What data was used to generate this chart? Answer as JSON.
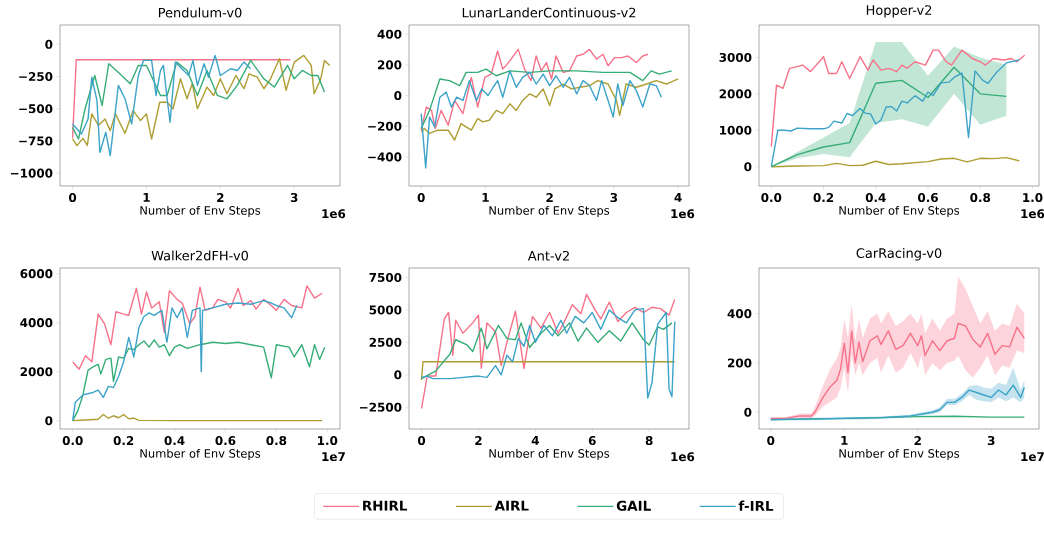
{
  "chart_data": [
    {
      "type": "line",
      "title": "Pendulum-v0",
      "xlabel": "Number of Env Steps",
      "annotations": [
        "1e6"
      ],
      "xlim": [
        -0.17,
        3.62
      ],
      "ylim": [
        -1100,
        150
      ],
      "xticks": [
        0,
        1,
        2,
        3
      ],
      "yticks": [
        {
          "value": -1000,
          "label": "−1000"
        },
        {
          "value": -750,
          "label": "−750"
        },
        {
          "value": -500,
          "label": "−500"
        },
        {
          "value": -250,
          "label": "−250"
        },
        0
      ],
      "series": [
        {
          "color": "#f77189",
          "x": [
            0,
            0.05,
            2.95
          ],
          "values": [
            -730,
            -120,
            -120
          ]
        },
        {
          "color": "#ae9d31",
          "x": [
            0,
            0.06,
            0.14,
            0.2,
            0.26,
            0.35,
            0.44,
            0.51,
            0.58,
            0.71,
            0.82,
            0.92,
            1.0,
            1.07,
            1.18,
            1.28,
            1.36,
            1.46,
            1.55,
            1.62,
            1.69,
            1.82,
            1.91,
            2.0,
            2.09,
            2.21,
            2.32,
            2.39,
            2.5,
            2.59,
            2.68,
            2.8,
            2.89,
            3.0,
            3.13,
            3.23,
            3.27,
            3.36,
            3.41,
            3.48
          ],
          "values": [
            -735,
            -787,
            -730,
            -785,
            -540,
            -630,
            -580,
            -670,
            -540,
            -690,
            -515,
            -592,
            -540,
            -735,
            -450,
            -450,
            -500,
            -268,
            -423,
            -306,
            -500,
            -332,
            -397,
            -268,
            -384,
            -242,
            -345,
            -229,
            -255,
            -345,
            -268,
            -112,
            -358,
            -138,
            -86,
            -164,
            -384,
            -268,
            -125,
            -164
          ]
        },
        {
          "color": "#36ad77",
          "x": [
            0,
            0.08,
            0.17,
            0.3,
            0.4,
            0.49,
            0.64,
            0.78,
            0.89,
            1.0,
            1.19,
            1.28,
            1.41,
            1.55,
            1.69,
            1.82,
            1.96,
            2.09,
            2.23,
            2.41,
            2.59,
            2.73,
            2.91,
            3.0,
            3.11,
            3.23,
            3.32,
            3.41
          ],
          "values": [
            -645,
            -735,
            -500,
            -242,
            -475,
            -151,
            -229,
            -306,
            -164,
            -164,
            -397,
            -397,
            -138,
            -203,
            -397,
            -203,
            -397,
            -423,
            -319,
            -125,
            -268,
            -332,
            -164,
            -268,
            -203,
            -242,
            -242,
            -371
          ]
        },
        {
          "color": "#3ba3c8",
          "x": [
            0,
            0.12,
            0.21,
            0.26,
            0.33,
            0.37,
            0.45,
            0.51,
            0.62,
            0.71,
            0.8,
            0.89,
            0.96,
            1.07,
            1.13,
            1.19,
            1.23,
            1.28,
            1.32,
            1.39,
            1.48,
            1.57,
            1.63,
            1.69,
            1.78,
            1.84,
            1.93,
            2.0,
            2.14,
            2.23,
            2.32,
            2.41
          ],
          "values": [
            -618,
            -696,
            -580,
            -255,
            -436,
            -839,
            -683,
            -865,
            -319,
            -423,
            -618,
            -242,
            -125,
            -125,
            -397,
            -203,
            -164,
            -423,
            -605,
            -138,
            -190,
            -242,
            -125,
            -319,
            -151,
            -255,
            -86,
            -242,
            -190,
            -203,
            -138,
            -190
          ]
        }
      ]
    },
    {
      "type": "line",
      "title": "LunarLanderContinuous-v2",
      "xlabel": "Number of Env Steps",
      "annotations": [
        "1e6"
      ],
      "xlim": [
        -0.19,
        4.17
      ],
      "ylim": [
        -590,
        460
      ],
      "xticks": [
        0,
        1,
        2,
        3,
        4
      ],
      "yticks": [
        {
          "value": -400,
          "label": "−400"
        },
        {
          "value": -200,
          "label": "−200"
        },
        0,
        200,
        400
      ],
      "series": [
        {
          "color": "#f77189",
          "x": [
            0,
            0.08,
            0.16,
            0.22,
            0.31,
            0.42,
            0.52,
            0.65,
            0.78,
            0.88,
            0.99,
            1.09,
            1.19,
            1.27,
            1.38,
            1.51,
            1.61,
            1.71,
            1.79,
            1.87,
            1.95,
            2.03,
            2.1,
            2.21,
            2.31,
            2.42,
            2.52,
            2.62,
            2.73,
            2.83,
            2.91,
            3.01,
            3.12,
            3.22,
            3.35,
            3.45,
            3.53
          ],
          "values": [
            -226,
            -75,
            -97,
            -215,
            -97,
            -194,
            -32,
            -118,
            118,
            -75,
            118,
            140,
            290,
            172,
            226,
            301,
            172,
            97,
            258,
            161,
            215,
            108,
            258,
            151,
            161,
            258,
            269,
            301,
            237,
            269,
            194,
            247,
            247,
            258,
            215,
            258,
            269
          ]
        },
        {
          "color": "#ae9d31",
          "x": [
            0,
            0.05,
            0.13,
            0.26,
            0.42,
            0.52,
            0.62,
            0.78,
            0.88,
            0.96,
            1.06,
            1.17,
            1.27,
            1.38,
            1.48,
            1.58,
            1.69,
            1.79,
            1.9,
            2.0,
            2.08,
            2.21,
            2.34,
            2.47,
            2.62,
            2.75,
            2.91,
            3.04,
            3.09,
            3.19,
            3.35,
            3.51,
            3.66,
            3.82,
            4.0
          ],
          "values": [
            -237,
            -215,
            -247,
            -226,
            -226,
            -290,
            -183,
            -226,
            -151,
            -172,
            -161,
            -97,
            -118,
            -54,
            -97,
            -32,
            11,
            -11,
            43,
            -65,
            43,
            75,
            43,
            54,
            65,
            97,
            75,
            -32,
            -129,
            75,
            54,
            75,
            97,
            75,
            108
          ]
        },
        {
          "color": "#36ad77",
          "x": [
            0,
            0.13,
            0.29,
            0.44,
            0.6,
            0.7,
            0.88,
            1.01,
            1.17,
            1.38,
            1.69,
            2.0,
            2.42,
            2.83,
            3.25,
            3.45,
            3.58,
            3.71,
            3.9
          ],
          "values": [
            -215,
            -97,
            108,
            97,
            65,
            151,
            151,
            172,
            129,
            161,
            151,
            161,
            161,
            151,
            151,
            97,
            161,
            140,
            161
          ]
        },
        {
          "color": "#3ba3c8",
          "x": [
            0,
            0.07,
            0.13,
            0.21,
            0.29,
            0.39,
            0.47,
            0.55,
            0.65,
            0.75,
            0.86,
            0.94,
            1.04,
            1.12,
            1.19,
            1.27,
            1.38,
            1.48,
            1.58,
            1.69,
            1.79,
            1.9,
            2.0,
            2.1,
            2.21,
            2.31,
            2.42,
            2.52,
            2.62,
            2.73,
            2.81,
            2.91,
            2.99,
            3.06,
            3.14,
            3.25,
            3.35,
            3.45,
            3.56,
            3.66,
            3.74
          ],
          "values": [
            -118,
            -473,
            -140,
            -204,
            -11,
            22,
            -75,
            -11,
            -32,
            97,
            -32,
            43,
            0,
            54,
            97,
            -11,
            161,
            54,
            118,
            151,
            75,
            140,
            65,
            129,
            54,
            118,
            11,
            97,
            65,
            -32,
            97,
            -32,
            -140,
            75,
            -65,
            97,
            32,
            -75,
            75,
            65,
            -11
          ]
        }
      ]
    },
    {
      "type": "line",
      "title": "Hopper-v2",
      "xlabel": "Number of Env Steps",
      "annotations": [
        "1e6"
      ],
      "xlim": [
        -0.047,
        1.025
      ],
      "ylim": [
        -530,
        3890
      ],
      "xticks": [
        {
          "value": 0,
          "label": "0.0"
        },
        {
          "value": 0.2,
          "label": "0.2"
        },
        {
          "value": 0.4,
          "label": "0.4"
        },
        {
          "value": 0.6,
          "label": "0.6"
        },
        {
          "value": 0.8,
          "label": "0.8"
        },
        {
          "value": 1,
          "label": "1.0"
        }
      ],
      "yticks": [
        0,
        1000,
        2000,
        3000
      ],
      "series": [
        {
          "color": "#f77189",
          "x": [
            0,
            0.02,
            0.045,
            0.07,
            0.095,
            0.12,
            0.15,
            0.2,
            0.22,
            0.25,
            0.27,
            0.3,
            0.34,
            0.37,
            0.39,
            0.42,
            0.45,
            0.48,
            0.5,
            0.52,
            0.55,
            0.59,
            0.62,
            0.64,
            0.67,
            0.69,
            0.73,
            0.77,
            0.8,
            0.82,
            0.85,
            0.89,
            0.92,
            0.94,
            0.97
          ],
          "values": [
            550,
            2240,
            2150,
            2700,
            2740,
            2790,
            2610,
            3020,
            2560,
            2560,
            2880,
            2420,
            3020,
            2650,
            2930,
            2650,
            2700,
            2610,
            2790,
            2700,
            2880,
            2790,
            3200,
            3200,
            2880,
            2790,
            3200,
            2970,
            2880,
            2790,
            2970,
            2930,
            2970,
            2880,
            3060
          ]
        },
        {
          "color": "#ae9d31",
          "x": [
            0,
            0.1,
            0.2,
            0.25,
            0.3,
            0.35,
            0.4,
            0.45,
            0.5,
            0.6,
            0.65,
            0.7,
            0.75,
            0.8,
            0.85,
            0.9,
            0.95
          ],
          "values": [
            0,
            20,
            30,
            90,
            30,
            40,
            150,
            60,
            80,
            140,
            210,
            230,
            130,
            230,
            220,
            250,
            160
          ]
        },
        {
          "color": "#36ad77",
          "x": [
            0,
            0.1,
            0.2,
            0.3,
            0.4,
            0.5,
            0.6,
            0.7,
            0.8,
            0.9
          ],
          "values": [
            0,
            330,
            540,
            660,
            2290,
            2370,
            1900,
            2730,
            2000,
            1930
          ],
          "lower": [
            0,
            230,
            350,
            260,
            1200,
            1300,
            1100,
            2000,
            1150,
            1400
          ],
          "upper": [
            0,
            400,
            800,
            1200,
            3420,
            3420,
            2500,
            3300,
            3000,
            2800
          ]
        },
        {
          "color": "#3ba3c8",
          "x": [
            0,
            0.025,
            0.05,
            0.075,
            0.1,
            0.15,
            0.2,
            0.22,
            0.24,
            0.27,
            0.29,
            0.31,
            0.34,
            0.36,
            0.38,
            0.4,
            0.42,
            0.44,
            0.46,
            0.48,
            0.5,
            0.52,
            0.55,
            0.58,
            0.6,
            0.62,
            0.65,
            0.68,
            0.7,
            0.73,
            0.755,
            0.78,
            0.81,
            0.83,
            0.86,
            0.9,
            0.95
          ],
          "values": [
            0,
            1000,
            1000,
            980,
            1060,
            1040,
            1040,
            1080,
            1250,
            1200,
            1460,
            1400,
            1600,
            1470,
            1450,
            1170,
            1280,
            1640,
            1650,
            1530,
            1800,
            1750,
            1950,
            1800,
            2050,
            1960,
            2300,
            2320,
            2450,
            2570,
            800,
            2630,
            2370,
            2290,
            2570,
            2850,
            2930
          ]
        }
      ]
    },
    {
      "type": "line",
      "title": "Walker2dFH-v0",
      "xlabel": "Number of Env Steps",
      "annotations": [
        "1e7"
      ],
      "xlim": [
        -0.05,
        1.05
      ],
      "ylim": [
        -340,
        6230
      ],
      "xticks": [
        {
          "value": 0,
          "label": "0.0"
        },
        {
          "value": 0.2,
          "label": "0.2"
        },
        {
          "value": 0.4,
          "label": "0.4"
        },
        {
          "value": 0.6,
          "label": "0.6"
        },
        {
          "value": 0.8,
          "label": "0.8"
        },
        {
          "value": 1,
          "label": "1.0"
        }
      ],
      "yticks": [
        0,
        2000,
        4000,
        6000
      ],
      "series": [
        {
          "color": "#f77189",
          "x": [
            0,
            0.025,
            0.05,
            0.075,
            0.1,
            0.125,
            0.15,
            0.17,
            0.2,
            0.22,
            0.25,
            0.27,
            0.29,
            0.31,
            0.34,
            0.36,
            0.38,
            0.41,
            0.43,
            0.46,
            0.48,
            0.5,
            0.52,
            0.55,
            0.57,
            0.6,
            0.62,
            0.65,
            0.67,
            0.7,
            0.72,
            0.75,
            0.78,
            0.8,
            0.83,
            0.86,
            0.9,
            0.92,
            0.95,
            0.98
          ],
          "values": [
            2400,
            2100,
            2650,
            2400,
            4350,
            3950,
            3100,
            4450,
            4350,
            4300,
            5400,
            4350,
            5250,
            4600,
            4850,
            3600,
            5300,
            4950,
            4800,
            3950,
            4250,
            5450,
            4500,
            4600,
            4950,
            4850,
            4600,
            5400,
            4700,
            4900,
            4550,
            4950,
            4700,
            4500,
            4950,
            4700,
            4600,
            5500,
            5000,
            5200
          ]
        },
        {
          "color": "#ae9d31",
          "x": [
            0,
            0.05,
            0.1,
            0.12,
            0.14,
            0.16,
            0.18,
            0.2,
            0.22,
            0.24,
            0.26,
            0.4,
            0.6,
            0.8,
            0.98
          ],
          "values": [
            0,
            30,
            60,
            250,
            100,
            200,
            120,
            250,
            80,
            100,
            10,
            0,
            0,
            0,
            0
          ]
        },
        {
          "color": "#36ad77",
          "x": [
            0,
            0.02,
            0.04,
            0.06,
            0.08,
            0.1,
            0.11,
            0.13,
            0.15,
            0.16,
            0.18,
            0.2,
            0.22,
            0.24,
            0.26,
            0.28,
            0.3,
            0.32,
            0.34,
            0.36,
            0.38,
            0.4,
            0.42,
            0.45,
            0.5,
            0.55,
            0.6,
            0.65,
            0.7,
            0.75,
            0.78,
            0.8,
            0.85,
            0.87,
            0.9,
            0.93,
            0.95,
            0.97,
            0.99
          ],
          "values": [
            0,
            400,
            1050,
            2050,
            2200,
            2300,
            1900,
            2500,
            2550,
            1600,
            2600,
            2550,
            2950,
            2900,
            3100,
            3250,
            3000,
            3300,
            3000,
            3100,
            2650,
            3000,
            3100,
            2950,
            3100,
            3200,
            3150,
            3200,
            3100,
            3000,
            1750,
            3100,
            3000,
            2600,
            3100,
            2200,
            3100,
            2500,
            3000
          ]
        },
        {
          "color": "#3ba3c8",
          "x": [
            0,
            0.01,
            0.04,
            0.08,
            0.1,
            0.12,
            0.14,
            0.16,
            0.18,
            0.2,
            0.22,
            0.24,
            0.26,
            0.28,
            0.3,
            0.32,
            0.35,
            0.37,
            0.39,
            0.41,
            0.43,
            0.45,
            0.47,
            0.5,
            0.505,
            0.51,
            0.55,
            0.6,
            0.65,
            0.7,
            0.75,
            0.78,
            0.8,
            0.83,
            0.86,
            0.88
          ],
          "values": [
            0,
            750,
            1050,
            1150,
            1250,
            950,
            1400,
            1350,
            1800,
            2400,
            3400,
            2600,
            3800,
            4250,
            4400,
            4300,
            4500,
            3200,
            4600,
            4200,
            4600,
            3400,
            4500,
            4600,
            2000,
            4500,
            4600,
            4750,
            4800,
            4750,
            4900,
            4800,
            4700,
            4600,
            4200,
            4700
          ]
        }
      ]
    },
    {
      "type": "line",
      "title": "Ant-v2",
      "xlabel": "Number of Env Steps",
      "annotations": [
        "1e6"
      ],
      "legend": "bottom",
      "xlim": [
        -0.44,
        9.4
      ],
      "ylim": [
        -4180,
        8230
      ],
      "xticks": [
        0,
        2,
        4,
        6,
        8
      ],
      "yticks": [
        {
          "value": -2500,
          "label": "−2500"
        },
        0,
        2500,
        5000,
        7500
      ],
      "series": [
        {
          "name": "RHIRL",
          "color": "#f77189",
          "x": [
            0,
            0.2,
            0.5,
            0.8,
            0.95,
            1.1,
            1.2,
            1.45,
            1.8,
            2.0,
            2.1,
            2.3,
            2.6,
            2.8,
            3.0,
            3.3,
            3.6,
            3.9,
            4.2,
            4.5,
            4.8,
            5.0,
            5.3,
            5.6,
            5.8,
            6.1,
            6.3,
            6.6,
            6.9,
            7.2,
            7.5,
            7.8,
            8.1,
            8.4,
            8.7,
            8.9
          ],
          "values": [
            -2600,
            -100,
            -100,
            4300,
            4800,
            1500,
            4200,
            3200,
            4000,
            4600,
            500,
            4000,
            3300,
            700,
            2500,
            4900,
            500,
            4500,
            3600,
            4800,
            3200,
            4000,
            5400,
            4700,
            6200,
            5000,
            4300,
            5600,
            4100,
            4800,
            5200,
            4800,
            5200,
            5100,
            4600,
            5800
          ]
        },
        {
          "name": "AIRL",
          "color": "#ae9d31",
          "x": [
            0,
            0.05,
            8.9
          ],
          "values": [
            -400,
            1000,
            1000
          ]
        },
        {
          "name": "GAIL",
          "color": "#36ad77",
          "x": [
            0,
            0.5,
            1.0,
            1.2,
            1.6,
            1.8,
            2.1,
            2.3,
            2.7,
            3.0,
            3.3,
            3.5,
            3.8,
            4.2,
            4.5,
            4.8,
            5.2,
            5.5,
            5.8,
            6.2,
            6.6,
            7.0,
            7.4,
            7.8,
            8.0,
            8.3,
            8.5,
            8.8
          ],
          "values": [
            -300,
            300,
            1600,
            2700,
            2300,
            1800,
            3600,
            2000,
            3800,
            2800,
            2700,
            4000,
            2100,
            3200,
            3800,
            3000,
            4000,
            2600,
            3600,
            2500,
            3400,
            2600,
            4000,
            2700,
            2300,
            3700,
            3500,
            4000
          ]
        },
        {
          "name": "f-IRL",
          "color": "#3ba3c8",
          "x": [
            0,
            0.2,
            0.4,
            1.0,
            1.5,
            2.0,
            2.3,
            2.6,
            2.8,
            3.0,
            3.2,
            3.4,
            3.6,
            3.8,
            4.0,
            4.3,
            4.6,
            4.9,
            5.1,
            5.4,
            5.7,
            6.0,
            6.3,
            6.6,
            6.9,
            7.2,
            7.5,
            7.8,
            7.95,
            8.1,
            8.3,
            8.6,
            8.7,
            8.8,
            8.9
          ],
          "values": [
            -200,
            -100,
            -300,
            -300,
            -200,
            -100,
            -200,
            700,
            0,
            1500,
            1000,
            2800,
            2200,
            3800,
            2500,
            3800,
            3000,
            4200,
            3200,
            4500,
            4000,
            4800,
            3500,
            5000,
            4400,
            4000,
            5000,
            5100,
            -1800,
            -600,
            3900,
            4800,
            -1100,
            -1700,
            4100
          ]
        }
      ]
    },
    {
      "type": "line",
      "title": "CarRacing-v0",
      "xlabel": "Number of Env Steps",
      "annotations": [
        "1e7"
      ],
      "xlim": [
        -0.16,
        3.65
      ],
      "ylim": [
        -68,
        585
      ],
      "xticks": [
        0,
        1,
        2,
        3
      ],
      "yticks": [
        0,
        200,
        400
      ],
      "series": [
        {
          "color": "#f77189",
          "x": [
            0,
            0.2,
            0.4,
            0.55,
            0.6,
            0.7,
            0.8,
            0.9,
            0.95,
            1.0,
            1.05,
            1.1,
            1.15,
            1.2,
            1.25,
            1.35,
            1.45,
            1.5,
            1.6,
            1.7,
            1.8,
            1.9,
            2.0,
            2.05,
            2.1,
            2.2,
            2.3,
            2.4,
            2.5,
            2.55,
            2.65,
            2.75,
            2.85,
            2.95,
            3.05,
            3.15,
            3.25,
            3.35,
            3.45
          ],
          "values": [
            -25,
            -25,
            -15,
            -15,
            0,
            55,
            100,
            130,
            175,
            280,
            160,
            330,
            200,
            285,
            205,
            290,
            310,
            275,
            330,
            255,
            270,
            320,
            270,
            310,
            230,
            290,
            250,
            290,
            300,
            360,
            350,
            295,
            265,
            320,
            235,
            270,
            265,
            345,
            300
          ],
          "lower": [
            -30,
            -30,
            -25,
            -25,
            -15,
            20,
            40,
            60,
            100,
            180,
            80,
            230,
            150,
            200,
            150,
            200,
            220,
            160,
            230,
            160,
            180,
            240,
            180,
            230,
            150,
            200,
            170,
            200,
            210,
            230,
            170,
            140,
            180,
            230,
            150,
            190,
            180,
            250,
            240
          ],
          "upper": [
            -20,
            -20,
            -5,
            -5,
            20,
            100,
            170,
            220,
            260,
            380,
            300,
            440,
            290,
            380,
            300,
            380,
            400,
            360,
            410,
            350,
            370,
            400,
            360,
            400,
            320,
            380,
            330,
            380,
            400,
            550,
            500,
            430,
            360,
            410,
            330,
            360,
            350,
            440,
            400
          ]
        },
        {
          "color": "#36ad77",
          "x": [
            0,
            0.5,
            1.0,
            1.5,
            2.0,
            2.5,
            3.0,
            3.45
          ],
          "values": [
            -30,
            -28,
            -25,
            -22,
            -18,
            -16,
            -20,
            -20
          ]
        },
        {
          "color": "#3ba3c8",
          "x": [
            0,
            0.5,
            1.0,
            1.5,
            1.9,
            2.1,
            2.2,
            2.3,
            2.4,
            2.5,
            2.6,
            2.7,
            2.8,
            2.9,
            3.0,
            3.1,
            3.2,
            3.3,
            3.4,
            3.45
          ],
          "values": [
            -30,
            -27,
            -25,
            -22,
            -15,
            -5,
            0,
            10,
            40,
            40,
            60,
            90,
            80,
            70,
            60,
            90,
            70,
            110,
            60,
            100
          ],
          "lower": [
            -35,
            -32,
            -30,
            -27,
            -20,
            -12,
            -8,
            0,
            30,
            28,
            45,
            70,
            50,
            45,
            40,
            60,
            45,
            60,
            40,
            60
          ],
          "upper": [
            -25,
            -22,
            -20,
            -17,
            -10,
            2,
            8,
            20,
            55,
            55,
            75,
            105,
            110,
            100,
            95,
            120,
            110,
            180,
            90,
            130
          ]
        }
      ]
    }
  ]
}
